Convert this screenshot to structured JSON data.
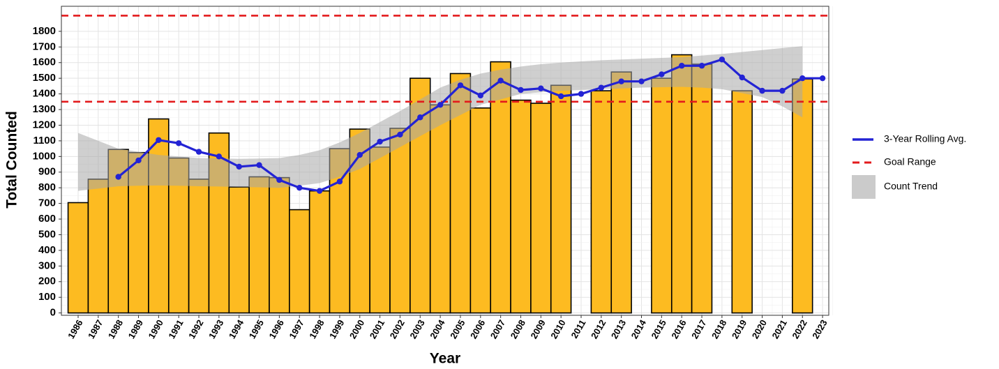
{
  "chart_data": {
    "type": "bar",
    "x_label": "Year",
    "y_label": "Total Counted",
    "categories": [
      "1986",
      "1987",
      "1988",
      "1989",
      "1990",
      "1991",
      "1992",
      "1993",
      "1994",
      "1995",
      "1996",
      "1997",
      "1998",
      "1999",
      "2000",
      "2001",
      "2002",
      "2003",
      "2004",
      "2005",
      "2006",
      "2007",
      "2008",
      "2009",
      "2010",
      "2011",
      "2012",
      "2013",
      "2014",
      "2015",
      "2016",
      "2017",
      "2018",
      "2019",
      "2020",
      "2021",
      "2022",
      "2023"
    ],
    "values": [
      705,
      855,
      1045,
      1025,
      1240,
      990,
      855,
      1150,
      805,
      870,
      865,
      660,
      780,
      1050,
      1175,
      1060,
      1180,
      1500,
      1330,
      1530,
      1310,
      1605,
      1360,
      1340,
      1455,
      null,
      1420,
      1540,
      null,
      1500,
      1650,
      1590,
      null,
      1420,
      null,
      null,
      1495,
      null
    ],
    "color": "#fdbb21",
    "ylim": [
      -15,
      1960
    ],
    "yticks": [
      0,
      100,
      200,
      300,
      400,
      500,
      600,
      700,
      800,
      900,
      1000,
      1100,
      1200,
      1300,
      1400,
      1500,
      1600,
      1700,
      1800
    ],
    "grid": true,
    "lines": [
      {
        "name": "3-Year Rolling Avg.",
        "color": "#2323d4",
        "values": [
          null,
          null,
          870,
          975,
          1105,
          1085,
          1030,
          1000,
          935,
          945,
          850,
          800,
          780,
          840,
          1010,
          1095,
          1140,
          1250,
          1330,
          1455,
          1390,
          1485,
          1425,
          1435,
          1385,
          1400,
          1440,
          1480,
          1480,
          1525,
          1580,
          1580,
          1620,
          1505,
          1420,
          1420,
          1500,
          1500
        ]
      }
    ],
    "reference_lines": {
      "name": "Goal Range",
      "color": "#e31a1c",
      "values": [
        1350,
        1900
      ]
    },
    "band": {
      "name": "Count Trend",
      "color": "#a8a8a8",
      "upper": [
        1150,
        1100,
        1050,
        1030,
        1010,
        1000,
        990,
        988,
        985,
        987,
        990,
        1010,
        1040,
        1090,
        1150,
        1220,
        1290,
        1365,
        1440,
        1490,
        1530,
        1555,
        1575,
        1590,
        1600,
        1608,
        1615,
        1620,
        1625,
        1630,
        1635,
        1645,
        1655,
        1668,
        1680,
        1693,
        1705,
        null
      ],
      "lower": [
        780,
        795,
        810,
        813,
        815,
        813,
        810,
        808,
        805,
        803,
        800,
        813,
        830,
        870,
        920,
        990,
        1060,
        1130,
        1200,
        1265,
        1330,
        1365,
        1400,
        1410,
        1420,
        1425,
        1430,
        1435,
        1440,
        1443,
        1445,
        1440,
        1430,
        1405,
        1380,
        1320,
        1250,
        null
      ]
    },
    "legend": "right"
  }
}
